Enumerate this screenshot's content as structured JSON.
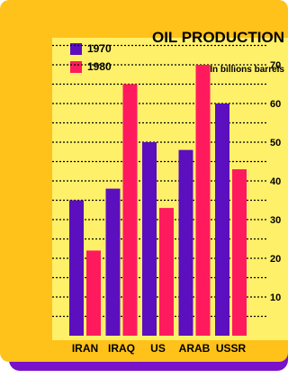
{
  "chart_data": {
    "type": "bar",
    "title": "OIL PRODUCTION",
    "unit_label": "In billions barrels",
    "categories": [
      "IRAN",
      "IRAQ",
      "US",
      "ARAB",
      "USSR"
    ],
    "series": [
      {
        "name": "1970",
        "color": "#5b0fbe",
        "values": [
          35,
          38,
          50,
          48,
          60
        ]
      },
      {
        "name": "1980",
        "color": "#ff1a5e",
        "values": [
          22,
          65,
          33,
          70,
          43
        ]
      }
    ],
    "yticks": [
      10,
      20,
      30,
      40,
      50,
      60,
      70
    ],
    "ylim": [
      0,
      75
    ],
    "grid": true,
    "gridline_step": 5,
    "legend_position": "top-left"
  },
  "colors": {
    "frame": "#7a12c9",
    "panel": "#ffc21a",
    "plot_area": "#fff06a",
    "gridline": "#000000"
  }
}
